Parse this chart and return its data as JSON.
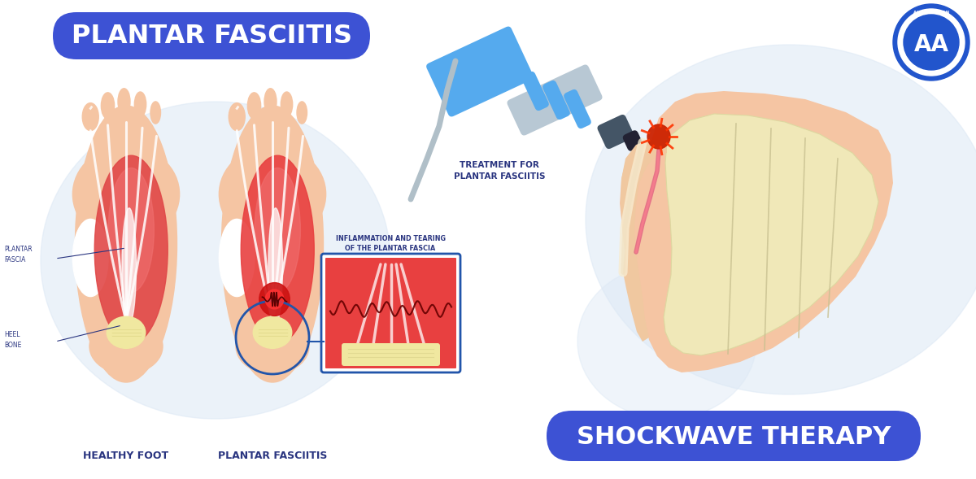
{
  "background_color": "#ffffff",
  "title_text": "PLANTAR FASCIITIS",
  "title_bg_color": "#3d52d4",
  "title_text_color": "#ffffff",
  "shockwave_text": "SHOCKWAVE THERAPY",
  "shockwave_bg_color": "#3d52d4",
  "shockwave_text_color": "#ffffff",
  "treatment_label": "TREATMENT FOR\nPLANTAR FASCIITIS",
  "inflammation_label": "INFLAMMATION AND TEARING\nOF THE PLANTAR FASCIA",
  "healthy_foot_label": "HEALTHY FOOT",
  "plantar_fasciitis_label": "PLANTAR FASCIITIS",
  "plantar_fascia_label": "PLANTAR\nFASCIA",
  "heel_bone_label": "HEEL\nBONE",
  "label_color": "#2a3580",
  "foot_skin_color": "#f5c5a3",
  "foot_muscle_red": "#e05050",
  "foot_muscle_bright": "#f07070",
  "foot_tendon_white": "#ffffff",
  "heel_bone_color": "#f0e8a0",
  "circle_bg_color": "#dce8f5",
  "zoom_border_color": "#2255aa",
  "logo_circle_color": "#2255cc",
  "logo_text_color": "#ffffff",
  "device_blue": "#55aaee",
  "device_gray": "#b8c8d4",
  "device_dark": "#445566",
  "bone_color": "#f0e8b8"
}
